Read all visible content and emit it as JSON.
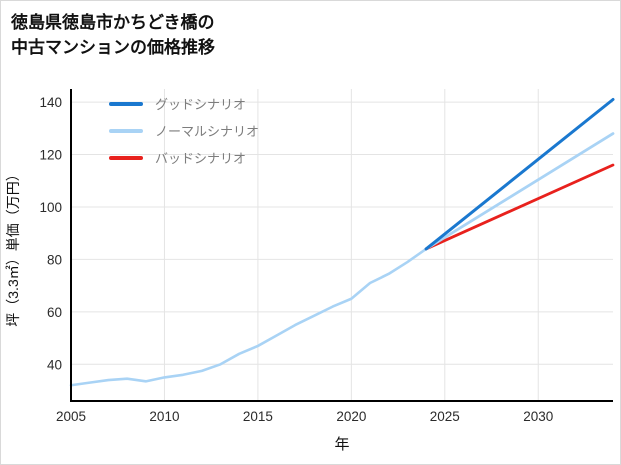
{
  "title": {
    "line1": "徳島県徳島市かちどき橋の",
    "line2": "中古マンションの価格推移"
  },
  "chart_data": {
    "type": "line",
    "title": "徳島県徳島市かちどき橋の中古マンションの価格推移",
    "xlabel": "年",
    "ylabel": "坪（3.3㎡）単価（万円）",
    "xlim": [
      2005,
      2034
    ],
    "ylim": [
      26,
      145
    ],
    "x_ticks": [
      2005,
      2010,
      2015,
      2020,
      2025,
      2030
    ],
    "y_ticks": [
      40,
      60,
      80,
      100,
      120,
      140
    ],
    "grid": true,
    "style": {
      "grid_color": "#e4e4e4",
      "axis_color": "#000000",
      "tick_label_color": "#2b2b2b",
      "background": "#ffffff"
    },
    "legend_position": "upper-left-inside",
    "legend": [
      {
        "label": "グッドシナリオ",
        "color": "#1a78cf"
      },
      {
        "label": "ノーマルシナリオ",
        "color": "#a9d3f5"
      },
      {
        "label": "バッドシナリオ",
        "color": "#e8211d"
      }
    ],
    "series": [
      {
        "name": "historical",
        "color": "#a9d3f5",
        "width": 2.6,
        "x": [
          2005,
          2006,
          2007,
          2008,
          2009,
          2010,
          2011,
          2012,
          2013,
          2014,
          2015,
          2016,
          2017,
          2018,
          2019,
          2020,
          2021,
          2022,
          2023,
          2024
        ],
        "values": [
          32,
          33,
          34,
          34.5,
          33.5,
          35,
          36,
          37.5,
          40,
          44,
          47,
          51,
          55,
          58.5,
          62,
          65,
          71,
          74.5,
          79,
          84
        ]
      },
      {
        "name": "bad-scenario",
        "color": "#e8211d",
        "width": 2.8,
        "x": [
          2024,
          2034
        ],
        "values": [
          84,
          116
        ]
      },
      {
        "name": "normal-scenario",
        "color": "#a9d3f5",
        "width": 2.8,
        "x": [
          2024,
          2034
        ],
        "values": [
          84,
          128
        ]
      },
      {
        "name": "good-scenario",
        "color": "#1a78cf",
        "width": 3,
        "x": [
          2024,
          2034
        ],
        "values": [
          84,
          141
        ]
      }
    ]
  }
}
